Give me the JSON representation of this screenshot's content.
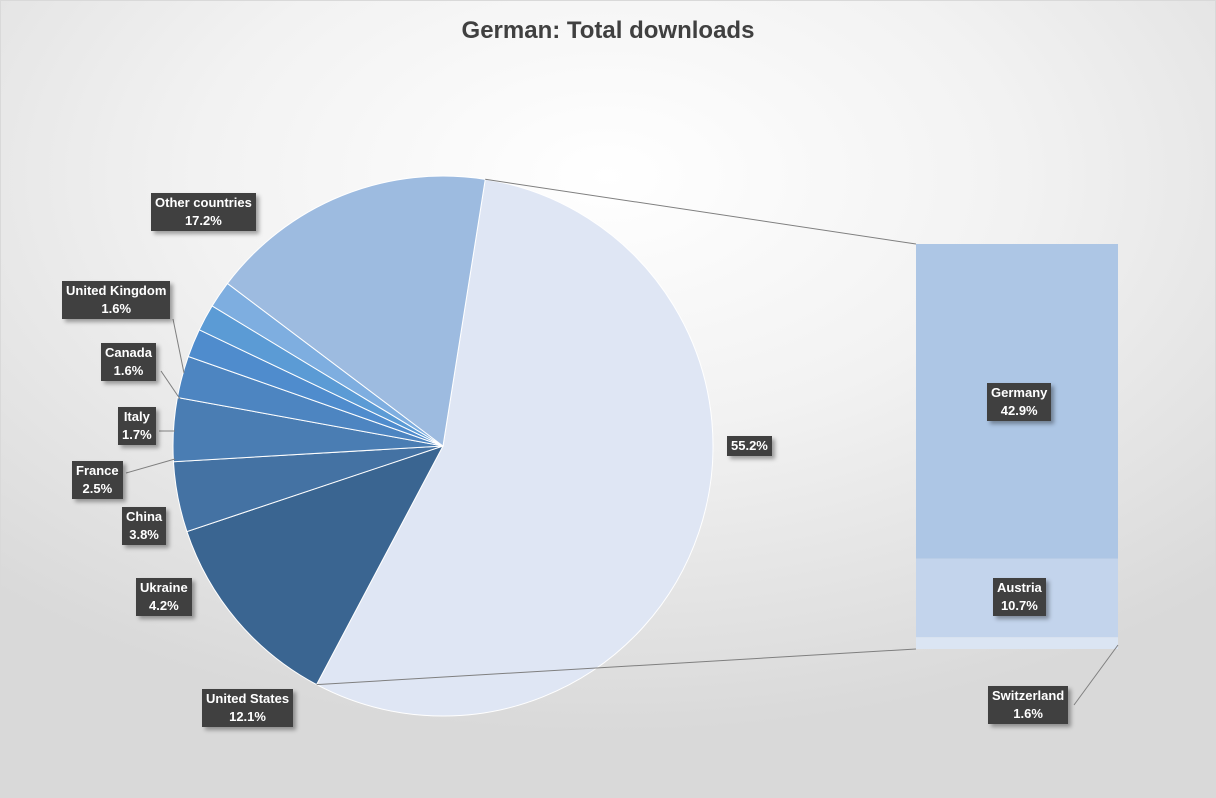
{
  "chart_data": {
    "type": "pie",
    "subtype": "bar-of-pie",
    "title": "German: Total downloads",
    "pie": [
      {
        "name": "",
        "label": "55.2%",
        "value": 55.2,
        "color": "#dfe6f4"
      },
      {
        "name": "United States",
        "label": "12.1%",
        "value": 12.1,
        "color": "#3a6591"
      },
      {
        "name": "Ukraine",
        "label": "4.2%",
        "value": 4.2,
        "color": "#4472a3"
      },
      {
        "name": "China",
        "label": "3.8%",
        "value": 3.8,
        "color": "#4a7db3"
      },
      {
        "name": "France",
        "label": "2.5%",
        "value": 2.5,
        "color": "#4d85c1"
      },
      {
        "name": "Italy",
        "label": "1.7%",
        "value": 1.7,
        "color": "#4f8ccd"
      },
      {
        "name": "Canada",
        "label": "1.6%",
        "value": 1.6,
        "color": "#5b9bd5"
      },
      {
        "name": "United Kingdom",
        "label": "1.6%",
        "value": 1.6,
        "color": "#7eaee0"
      },
      {
        "name": "Other countries",
        "label": "17.2%",
        "value": 17.2,
        "color": "#9dbbe0"
      }
    ],
    "bar": [
      {
        "name": "Germany",
        "label": "42.9%",
        "value": 42.9,
        "color": "#adc6e5"
      },
      {
        "name": "Austria",
        "label": "10.7%",
        "value": 10.7,
        "color": "#c3d4ec"
      },
      {
        "name": "Switzerland",
        "label": "1.6%",
        "value": 1.6,
        "color": "#dbe5f3"
      }
    ],
    "legend": "none"
  }
}
